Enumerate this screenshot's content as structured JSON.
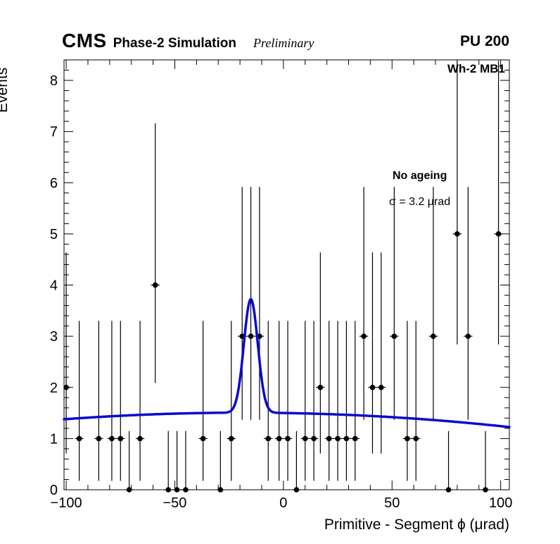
{
  "header": {
    "experiment": "CMS",
    "label": "Phase-2 Simulation",
    "status": "Preliminary",
    "pileup": "PU 200"
  },
  "annotations": {
    "chamber": "Wh-2 MB1",
    "scenario": "No ageing",
    "resolution": "σ = 3.2 μrad"
  },
  "chart_data": {
    "type": "scatter",
    "title": "",
    "xlabel": "Primitive - Segment ϕ (μrad)",
    "ylabel": "Events",
    "xlim": [
      -101,
      104
    ],
    "ylim": [
      0,
      8.4
    ],
    "grid": false,
    "legend_position": "none",
    "x_major_ticks": [
      -100,
      -50,
      0,
      50,
      100
    ],
    "x_tick_labels": [
      "−100",
      "−50",
      "0",
      "50",
      "100"
    ],
    "x_minor_step": 10,
    "y_major_ticks": [
      0,
      1,
      2,
      3,
      4,
      5,
      6,
      7,
      8
    ],
    "y_tick_labels": [
      "0",
      "1",
      "2",
      "3",
      "4",
      "5",
      "6",
      "7",
      "8"
    ],
    "y_minor_step": 0.2,
    "bin_half_width": 2,
    "series": [
      {
        "name": "events-data",
        "marker": "filled-circle",
        "color": "#000000",
        "points": [
          [
            -100,
            2
          ],
          [
            -94,
            1
          ],
          [
            -85,
            1
          ],
          [
            -79,
            1
          ],
          [
            -75,
            1
          ],
          [
            -71,
            0
          ],
          [
            -66,
            1
          ],
          [
            -59,
            4
          ],
          [
            -53,
            0
          ],
          [
            -49,
            0
          ],
          [
            -45,
            0
          ],
          [
            -37,
            1
          ],
          [
            -29,
            0
          ],
          [
            -24,
            1
          ],
          [
            -19,
            3
          ],
          [
            -15,
            3
          ],
          [
            -11,
            3
          ],
          [
            -7,
            1
          ],
          [
            -2,
            1
          ],
          [
            2,
            1
          ],
          [
            6,
            0
          ],
          [
            10,
            1
          ],
          [
            14,
            1
          ],
          [
            17,
            2
          ],
          [
            21,
            1
          ],
          [
            25,
            1
          ],
          [
            29,
            1
          ],
          [
            33,
            1
          ],
          [
            37,
            3
          ],
          [
            41,
            2
          ],
          [
            45,
            2
          ],
          [
            51,
            3
          ],
          [
            57,
            1
          ],
          [
            61,
            1
          ],
          [
            69,
            3
          ],
          [
            76,
            0
          ],
          [
            80,
            5
          ],
          [
            85,
            3
          ],
          [
            93,
            0
          ],
          [
            99,
            5
          ]
        ]
      }
    ],
    "poisson_errors": {
      "0": [
        0,
        1.148
      ],
      "1": [
        0.827,
        2.3
      ],
      "2": [
        1.292,
        2.638
      ],
      "3": [
        1.633,
        2.918
      ],
      "4": [
        1.914,
        3.163
      ],
      "5": [
        2.16,
        3.382
      ]
    },
    "fit": {
      "model": "gaussian + quadratic background",
      "center": -15,
      "sigma": 3.2,
      "amplitude": 2.22,
      "background_coeffs": [
        -1.886e-05,
        -0.000686,
        1.5
      ],
      "color": "#0909cf",
      "line_width": 3.5
    }
  }
}
